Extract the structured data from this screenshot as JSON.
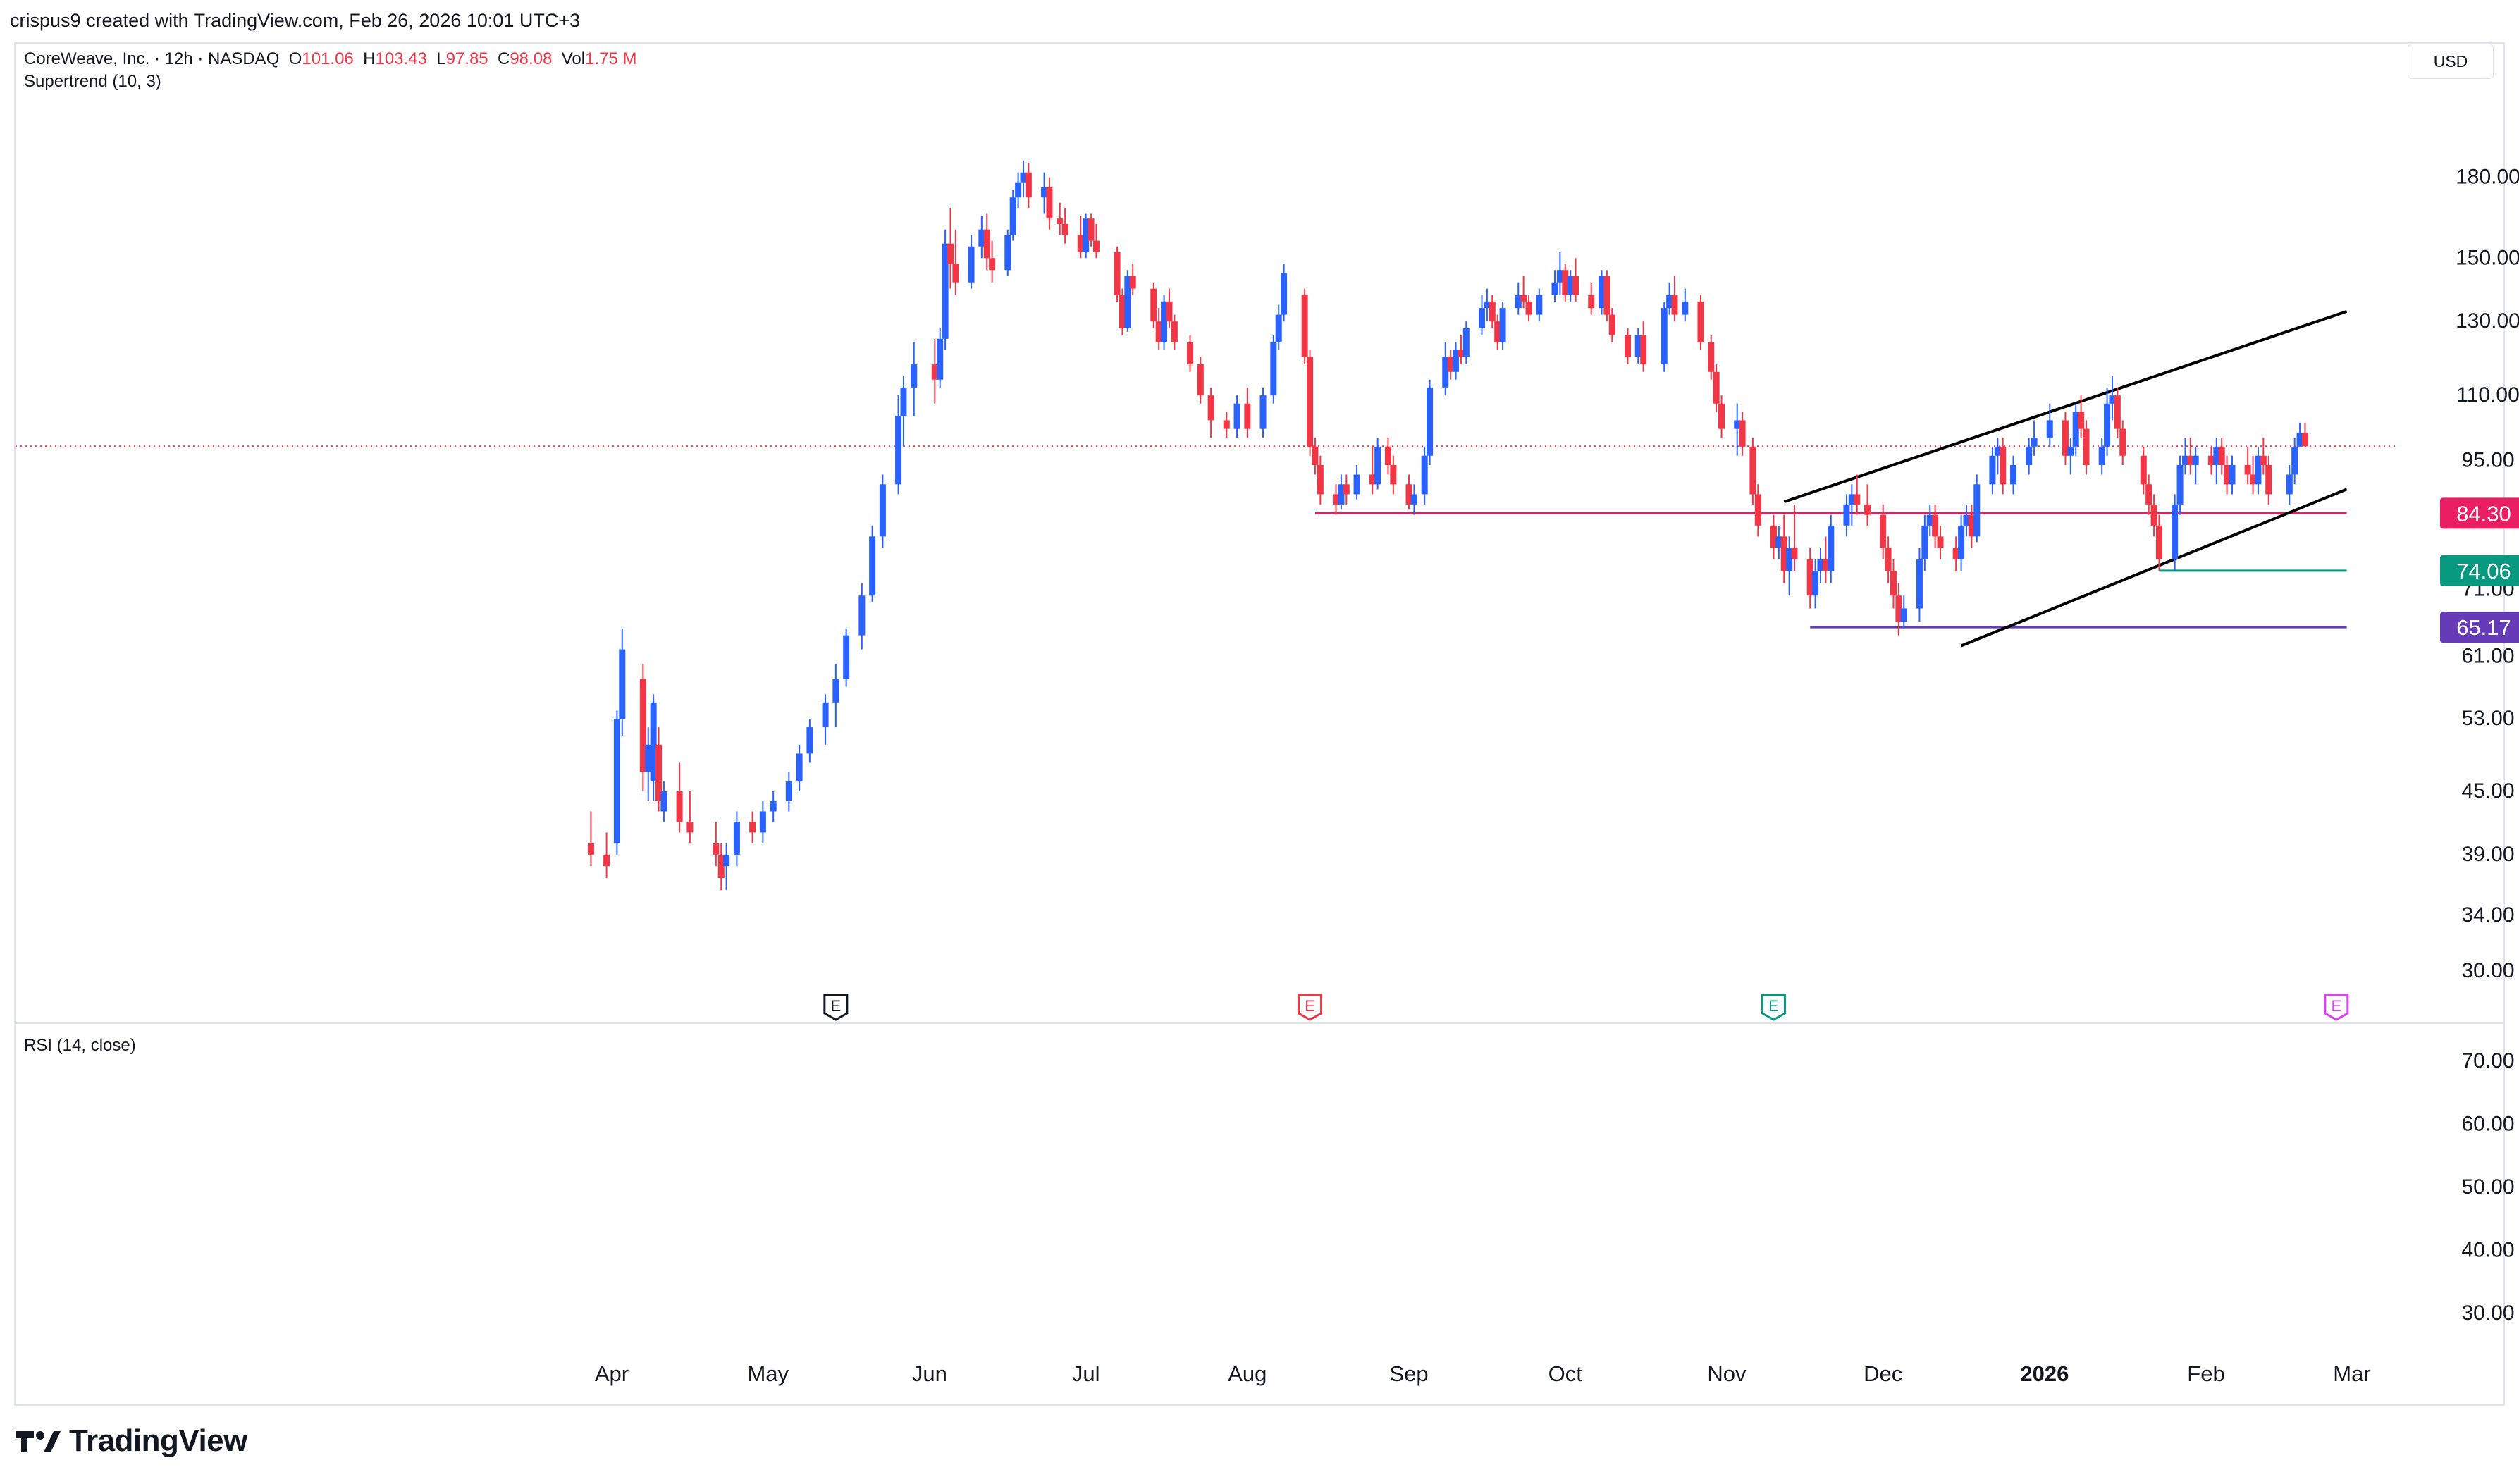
{
  "header": {
    "attribution": "crispus9 created with TradingView.com, Feb 26, 2026 10:01 UTC+3"
  },
  "legend": {
    "symbol": "CoreWeave, Inc. · 12h · NASDAQ",
    "o_label": "O",
    "o_value": "101.06",
    "h_label": "H",
    "h_value": "103.43",
    "l_label": "L",
    "l_value": "97.85",
    "c_label": "C",
    "c_value": "98.08",
    "vol_label": "Vol",
    "vol_value": "1.75 M",
    "indicator": "Supertrend (10, 3)",
    "rsi": "RSI (14, close)"
  },
  "currency": "USD",
  "footer": {
    "brand": "TradingView"
  },
  "colors": {
    "up": "#2962ff",
    "down": "#f23645",
    "pink_line": "#e91e63",
    "teal": "#089981",
    "purple": "#673ab7",
    "grid_border": "#e0e3eb"
  },
  "chart_data": {
    "type": "candlestick",
    "title": "CoreWeave, Inc. · 12h · NASDAQ",
    "y_scale": "log",
    "ylim": [
      28.5,
      215
    ],
    "price_ticks": [
      "180.00",
      "150.00",
      "130.00",
      "110.00",
      "95.00",
      "71.00",
      "61.00",
      "53.00",
      "45.00",
      "39.00",
      "34.00",
      "30.00"
    ],
    "x_axis_labels": [
      "Apr",
      "May",
      "Jun",
      "Jul",
      "Aug",
      "Sep",
      "Oct",
      "Nov",
      "Dec",
      "2026",
      "Feb",
      "Mar"
    ],
    "current_price": 98.08,
    "price_labels": [
      {
        "value": "84.30",
        "color": "#e91e63"
      },
      {
        "value": "74.06",
        "color": "#089981"
      },
      {
        "value": "65.17",
        "color": "#673ab7"
      }
    ],
    "horizontal_lines": [
      {
        "price": 84.3,
        "color": "#e91e63",
        "from": "2025-08-14",
        "to": "2026-02-28"
      },
      {
        "price": 74.06,
        "color": "#089981",
        "from": "2026-01-23",
        "to": "2026-02-28"
      },
      {
        "price": 65.17,
        "color": "#673ab7",
        "from": "2025-11-17",
        "to": "2026-02-28"
      }
    ],
    "trend_lines": [
      {
        "from": [
          "2025-11-12",
          86.5
        ],
        "to": [
          "2026-02-28",
          133
        ]
      },
      {
        "from": [
          "2025-12-16",
          62.5
        ],
        "to": [
          "2026-02-28",
          89
        ]
      }
    ],
    "earnings_markers": [
      {
        "date": "2025-05-14",
        "label": "E",
        "color": "#131722"
      },
      {
        "date": "2025-08-13",
        "label": "E",
        "color": "#f23645"
      },
      {
        "date": "2025-11-10",
        "label": "E",
        "color": "#089981"
      },
      {
        "date": "2026-02-26",
        "label": "E",
        "color": "#e040fb"
      }
    ],
    "rsi_ticks": [
      "70.00",
      "60.00",
      "50.00",
      "40.00",
      "30.00"
    ],
    "rsi_range": [
      26,
      74
    ],
    "candles": [
      [
        "2025-03-28",
        40,
        43,
        38,
        39
      ],
      [
        "2025-03-31",
        39,
        41,
        37,
        38
      ],
      [
        "2025-04-02",
        40,
        54,
        39,
        53
      ],
      [
        "2025-04-03",
        53,
        65,
        51,
        62
      ],
      [
        "2025-04-07",
        58,
        60,
        45,
        47
      ],
      [
        "2025-04-08",
        47,
        52,
        44,
        50
      ],
      [
        "2025-04-09",
        46,
        56,
        44,
        55
      ],
      [
        "2025-04-10",
        50,
        52,
        43,
        44
      ],
      [
        "2025-04-11",
        43,
        46,
        42,
        45
      ],
      [
        "2025-04-14",
        45,
        48,
        41,
        42
      ],
      [
        "2025-04-16",
        42,
        45,
        40,
        41
      ],
      [
        "2025-04-21",
        40,
        42,
        38,
        39
      ],
      [
        "2025-04-22",
        39,
        40,
        36,
        37
      ],
      [
        "2025-04-23",
        38,
        40,
        36,
        39
      ],
      [
        "2025-04-25",
        39,
        43,
        38,
        42
      ],
      [
        "2025-04-28",
        42,
        43,
        40,
        41
      ],
      [
        "2025-04-30",
        41,
        44,
        40,
        43
      ],
      [
        "2025-05-02",
        43,
        45,
        42,
        44
      ],
      [
        "2025-05-05",
        44,
        47,
        43,
        46
      ],
      [
        "2025-05-07",
        46,
        50,
        45,
        49
      ],
      [
        "2025-05-09",
        49,
        53,
        48,
        52
      ],
      [
        "2025-05-12",
        52,
        56,
        50,
        55
      ],
      [
        "2025-05-14",
        55,
        60,
        52,
        58
      ],
      [
        "2025-05-16",
        58,
        65,
        57,
        64
      ],
      [
        "2025-05-19",
        64,
        72,
        62,
        70
      ],
      [
        "2025-05-21",
        70,
        82,
        69,
        80
      ],
      [
        "2025-05-23",
        80,
        92,
        78,
        90
      ],
      [
        "2025-05-26",
        90,
        110,
        88,
        105
      ],
      [
        "2025-05-27",
        105,
        115,
        98,
        112
      ],
      [
        "2025-05-29",
        112,
        124,
        105,
        118
      ],
      [
        "2025-06-02",
        118,
        125,
        108,
        114
      ],
      [
        "2025-06-03",
        114,
        128,
        112,
        125
      ],
      [
        "2025-06-04",
        125,
        160,
        122,
        155
      ],
      [
        "2025-06-05",
        155,
        168,
        140,
        148
      ],
      [
        "2025-06-06",
        148,
        160,
        138,
        142
      ],
      [
        "2025-06-09",
        142,
        158,
        140,
        154
      ],
      [
        "2025-06-11",
        154,
        165,
        150,
        160
      ],
      [
        "2025-06-12",
        160,
        166,
        146,
        150
      ],
      [
        "2025-06-13",
        150,
        156,
        142,
        146
      ],
      [
        "2025-06-16",
        146,
        160,
        144,
        158
      ],
      [
        "2025-06-17",
        158,
        175,
        156,
        172
      ],
      [
        "2025-06-18",
        172,
        182,
        168,
        178
      ],
      [
        "2025-06-19",
        178,
        187,
        172,
        182
      ],
      [
        "2025-06-20",
        182,
        186,
        168,
        172
      ],
      [
        "2025-06-23",
        172,
        182,
        166,
        176
      ],
      [
        "2025-06-24",
        176,
        180,
        160,
        164
      ],
      [
        "2025-06-26",
        164,
        170,
        158,
        162
      ],
      [
        "2025-06-27",
        162,
        168,
        155,
        158
      ],
      [
        "2025-06-30",
        158,
        165,
        150,
        152
      ],
      [
        "2025-07-01",
        152,
        166,
        150,
        164
      ],
      [
        "2025-07-02",
        164,
        166,
        154,
        156
      ],
      [
        "2025-07-03",
        156,
        162,
        150,
        152
      ],
      [
        "2025-07-07",
        152,
        154,
        136,
        138
      ],
      [
        "2025-07-08",
        138,
        140,
        126,
        128
      ],
      [
        "2025-07-09",
        128,
        146,
        127,
        144
      ],
      [
        "2025-07-10",
        144,
        148,
        138,
        140
      ],
      [
        "2025-07-14",
        140,
        142,
        128,
        130
      ],
      [
        "2025-07-15",
        130,
        134,
        122,
        124
      ],
      [
        "2025-07-16",
        124,
        138,
        122,
        136
      ],
      [
        "2025-07-17",
        136,
        140,
        128,
        130
      ],
      [
        "2025-07-18",
        130,
        132,
        122,
        124
      ],
      [
        "2025-07-21",
        124,
        126,
        116,
        118
      ],
      [
        "2025-07-23",
        118,
        120,
        108,
        110
      ],
      [
        "2025-07-25",
        110,
        112,
        100,
        104
      ],
      [
        "2025-07-28",
        104,
        106,
        100,
        102
      ],
      [
        "2025-07-30",
        102,
        110,
        100,
        108
      ],
      [
        "2025-08-01",
        108,
        112,
        100,
        102
      ],
      [
        "2025-08-04",
        102,
        112,
        100,
        110
      ],
      [
        "2025-08-06",
        110,
        126,
        108,
        124
      ],
      [
        "2025-08-07",
        124,
        135,
        122,
        132
      ],
      [
        "2025-08-08",
        132,
        148,
        130,
        145
      ],
      [
        "2025-08-12",
        138,
        140,
        118,
        120
      ],
      [
        "2025-08-13",
        120,
        122,
        96,
        98
      ],
      [
        "2025-08-14",
        98,
        100,
        92,
        94
      ],
      [
        "2025-08-15",
        94,
        96,
        86,
        88
      ],
      [
        "2025-08-18",
        88,
        90,
        84,
        86
      ],
      [
        "2025-08-19",
        86,
        92,
        85,
        90
      ],
      [
        "2025-08-20",
        90,
        92,
        86,
        88
      ],
      [
        "2025-08-22",
        88,
        94,
        87,
        92
      ],
      [
        "2025-08-25",
        92,
        98,
        88,
        90
      ],
      [
        "2025-08-26",
        90,
        100,
        89,
        98
      ],
      [
        "2025-08-28",
        98,
        100,
        92,
        94
      ],
      [
        "2025-08-29",
        94,
        96,
        88,
        90
      ],
      [
        "2025-09-01",
        90,
        92,
        85,
        86
      ],
      [
        "2025-09-02",
        86,
        90,
        84,
        88
      ],
      [
        "2025-09-04",
        88,
        98,
        86,
        96
      ],
      [
        "2025-09-05",
        96,
        114,
        94,
        112
      ],
      [
        "2025-09-08",
        112,
        124,
        110,
        120
      ],
      [
        "2025-09-09",
        120,
        122,
        114,
        116
      ],
      [
        "2025-09-10",
        116,
        124,
        114,
        122
      ],
      [
        "2025-09-11",
        122,
        126,
        118,
        120
      ],
      [
        "2025-09-12",
        120,
        130,
        118,
        128
      ],
      [
        "2025-09-15",
        128,
        138,
        126,
        134
      ],
      [
        "2025-09-16",
        134,
        140,
        130,
        136
      ],
      [
        "2025-09-17",
        136,
        138,
        128,
        130
      ],
      [
        "2025-09-18",
        130,
        132,
        122,
        124
      ],
      [
        "2025-09-19",
        124,
        136,
        122,
        134
      ],
      [
        "2025-09-22",
        134,
        142,
        132,
        138
      ],
      [
        "2025-09-23",
        138,
        144,
        134,
        136
      ],
      [
        "2025-09-24",
        136,
        138,
        130,
        132
      ],
      [
        "2025-09-26",
        132,
        140,
        130,
        138
      ],
      [
        "2025-09-29",
        138,
        146,
        136,
        142
      ],
      [
        "2025-09-30",
        142,
        152,
        138,
        146
      ],
      [
        "2025-10-01",
        146,
        148,
        136,
        138
      ],
      [
        "2025-10-02",
        138,
        146,
        136,
        144
      ],
      [
        "2025-10-03",
        144,
        150,
        136,
        138
      ],
      [
        "2025-10-06",
        138,
        142,
        132,
        134
      ],
      [
        "2025-10-08",
        134,
        146,
        132,
        144
      ],
      [
        "2025-10-09",
        144,
        146,
        130,
        132
      ],
      [
        "2025-10-10",
        132,
        134,
        124,
        126
      ],
      [
        "2025-10-13",
        126,
        128,
        118,
        120
      ],
      [
        "2025-10-15",
        120,
        128,
        118,
        126
      ],
      [
        "2025-10-16",
        126,
        130,
        116,
        118
      ],
      [
        "2025-10-20",
        118,
        136,
        116,
        134
      ],
      [
        "2025-10-21",
        134,
        142,
        132,
        138
      ],
      [
        "2025-10-22",
        138,
        144,
        130,
        132
      ],
      [
        "2025-10-24",
        132,
        140,
        130,
        136
      ],
      [
        "2025-10-27",
        136,
        138,
        122,
        124
      ],
      [
        "2025-10-29",
        124,
        126,
        114,
        116
      ],
      [
        "2025-10-30",
        116,
        118,
        106,
        108
      ],
      [
        "2025-10-31",
        108,
        110,
        100,
        102
      ],
      [
        "2025-11-03",
        102,
        108,
        96,
        104
      ],
      [
        "2025-11-04",
        104,
        106,
        96,
        98
      ],
      [
        "2025-11-06",
        98,
        100,
        86,
        88
      ],
      [
        "2025-11-07",
        88,
        90,
        80,
        82
      ],
      [
        "2025-11-10",
        82,
        84,
        76,
        78
      ],
      [
        "2025-11-11",
        78,
        82,
        76,
        80
      ],
      [
        "2025-11-12",
        80,
        84,
        72,
        74
      ],
      [
        "2025-11-13",
        74,
        80,
        70,
        78
      ],
      [
        "2025-11-14",
        78,
        86,
        74,
        76
      ],
      [
        "2025-11-17",
        76,
        78,
        68,
        70
      ],
      [
        "2025-11-18",
        70,
        76,
        68,
        74
      ],
      [
        "2025-11-19",
        74,
        78,
        72,
        76
      ],
      [
        "2025-11-20",
        76,
        80,
        72,
        74
      ],
      [
        "2025-11-21",
        74,
        84,
        72,
        82
      ],
      [
        "2025-11-24",
        82,
        88,
        80,
        86
      ],
      [
        "2025-11-25",
        86,
        90,
        82,
        88
      ],
      [
        "2025-11-26",
        88,
        92,
        84,
        86
      ],
      [
        "2025-11-28",
        86,
        90,
        82,
        84
      ],
      [
        "2025-12-01",
        84,
        86,
        76,
        78
      ],
      [
        "2025-12-02",
        78,
        80,
        72,
        74
      ],
      [
        "2025-12-03",
        74,
        76,
        68,
        70
      ],
      [
        "2025-12-04",
        70,
        72,
        64,
        66
      ],
      [
        "2025-12-05",
        66,
        70,
        65,
        68
      ],
      [
        "2025-12-08",
        68,
        78,
        66,
        76
      ],
      [
        "2025-12-09",
        76,
        84,
        74,
        82
      ],
      [
        "2025-12-10",
        82,
        86,
        80,
        84
      ],
      [
        "2025-12-11",
        84,
        86,
        78,
        80
      ],
      [
        "2025-12-12",
        80,
        82,
        76,
        78
      ],
      [
        "2025-12-15",
        78,
        80,
        74,
        76
      ],
      [
        "2025-12-16",
        76,
        84,
        74,
        82
      ],
      [
        "2025-12-17",
        82,
        86,
        80,
        84
      ],
      [
        "2025-12-18",
        84,
        86,
        78,
        80
      ],
      [
        "2025-12-19",
        80,
        92,
        79,
        90
      ],
      [
        "2025-12-22",
        90,
        98,
        88,
        96
      ],
      [
        "2025-12-23",
        96,
        100,
        92,
        98
      ],
      [
        "2025-12-24",
        98,
        100,
        88,
        90
      ],
      [
        "2025-12-26",
        90,
        96,
        88,
        94
      ],
      [
        "2025-12-29",
        94,
        100,
        92,
        98
      ],
      [
        "2025-12-30",
        98,
        104,
        96,
        100
      ],
      [
        "2026-01-02",
        100,
        108,
        98,
        104
      ],
      [
        "2026-01-05",
        104,
        106,
        94,
        96
      ],
      [
        "2026-01-06",
        96,
        100,
        92,
        98
      ],
      [
        "2026-01-07",
        98,
        108,
        96,
        106
      ],
      [
        "2026-01-08",
        106,
        110,
        100,
        102
      ],
      [
        "2026-01-09",
        102,
        104,
        92,
        94
      ],
      [
        "2026-01-12",
        94,
        100,
        92,
        98
      ],
      [
        "2026-01-13",
        98,
        112,
        96,
        108
      ],
      [
        "2026-01-14",
        108,
        115,
        104,
        110
      ],
      [
        "2026-01-15",
        110,
        112,
        100,
        102
      ],
      [
        "2026-01-16",
        102,
        104,
        94,
        96
      ],
      [
        "2026-01-20",
        96,
        98,
        88,
        90
      ],
      [
        "2026-01-21",
        90,
        92,
        84,
        86
      ],
      [
        "2026-01-22",
        86,
        88,
        80,
        82
      ],
      [
        "2026-01-23",
        82,
        84,
        74,
        76
      ],
      [
        "2026-01-26",
        76,
        88,
        74,
        86
      ],
      [
        "2026-01-27",
        86,
        96,
        84,
        94
      ],
      [
        "2026-01-28",
        94,
        100,
        92,
        96
      ],
      [
        "2026-01-29",
        96,
        100,
        92,
        94
      ],
      [
        "2026-01-30",
        94,
        98,
        90,
        96
      ],
      [
        "2026-02-02",
        96,
        98,
        92,
        94
      ],
      [
        "2026-02-03",
        94,
        100,
        90,
        98
      ],
      [
        "2026-02-04",
        98,
        100,
        92,
        94
      ],
      [
        "2026-02-05",
        94,
        96,
        88,
        90
      ],
      [
        "2026-02-06",
        90,
        96,
        88,
        94
      ],
      [
        "2026-02-09",
        94,
        98,
        90,
        92
      ],
      [
        "2026-02-10",
        92,
        96,
        88,
        90
      ],
      [
        "2026-02-11",
        90,
        98,
        88,
        96
      ],
      [
        "2026-02-12",
        96,
        100,
        92,
        94
      ],
      [
        "2026-02-13",
        94,
        96,
        86,
        88
      ],
      [
        "2026-02-17",
        88,
        94,
        86,
        92
      ],
      [
        "2026-02-18",
        92,
        100,
        90,
        98
      ],
      [
        "2026-02-19",
        98,
        103.43,
        97.85,
        101.06
      ],
      [
        "2026-02-20",
        101.06,
        103.43,
        97.85,
        98.08
      ]
    ]
  }
}
